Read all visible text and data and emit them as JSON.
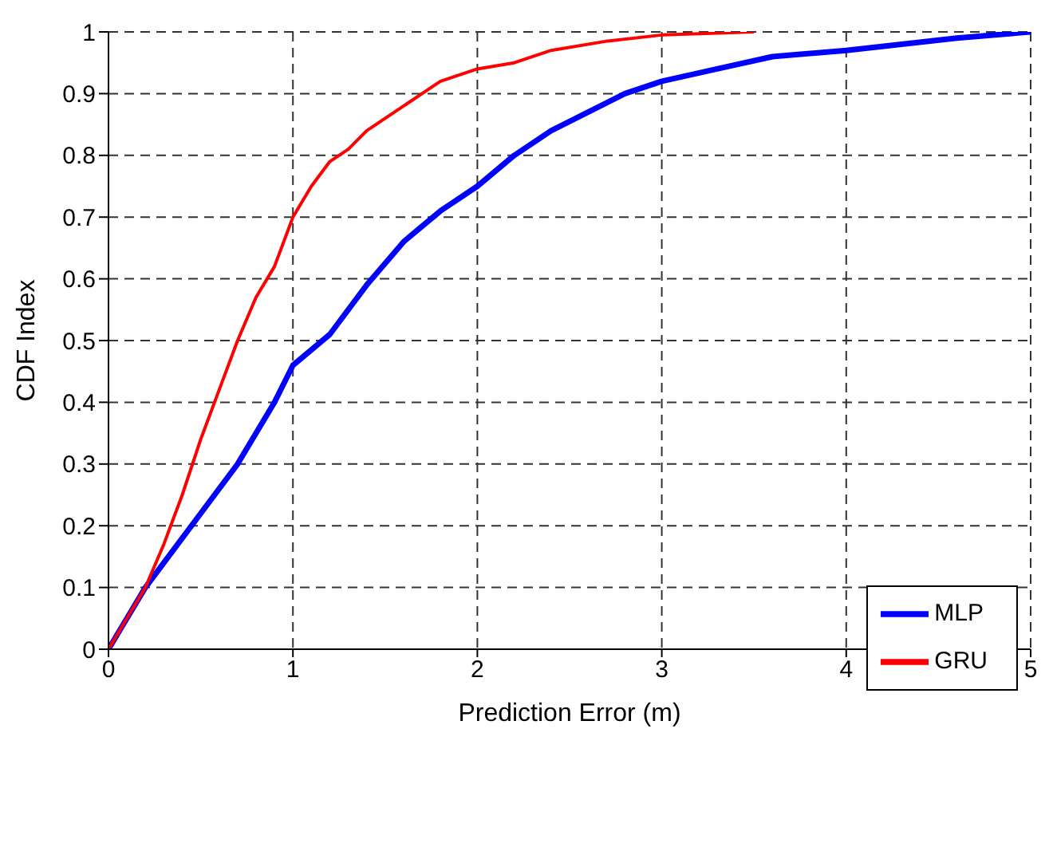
{
  "chart_data": {
    "type": "line",
    "xlabel": "Prediction Error (m)",
    "ylabel": "CDF Index",
    "xlim": [
      0,
      5
    ],
    "xticks": [
      0,
      1,
      2,
      3,
      4,
      5
    ],
    "ylim": [
      0,
      1
    ],
    "yticks": [
      0,
      0.1,
      0.2,
      0.3,
      0.4,
      0.5,
      0.6,
      0.7,
      0.8,
      0.9,
      1
    ],
    "grid": true,
    "line_style": "solid",
    "legend": "bottom right",
    "series": [
      {
        "name": "MLP",
        "color": "#0000ff",
        "x": [
          0,
          0.1,
          0.2,
          0.3,
          0.5,
          0.7,
          0.9,
          1.0,
          1.2,
          1.4,
          1.6,
          1.8,
          2.0,
          2.2,
          2.4,
          2.6,
          2.8,
          3.0,
          3.3,
          3.6,
          4.0,
          4.3,
          4.6,
          5.0
        ],
        "values": [
          0,
          0.05,
          0.1,
          0.14,
          0.22,
          0.3,
          0.4,
          0.46,
          0.51,
          0.59,
          0.66,
          0.71,
          0.75,
          0.8,
          0.84,
          0.87,
          0.9,
          0.92,
          0.94,
          0.96,
          0.97,
          0.98,
          0.99,
          1
        ]
      },
      {
        "name": "GRU",
        "color": "#ff0000",
        "x": [
          0,
          0.1,
          0.2,
          0.3,
          0.4,
          0.5,
          0.6,
          0.7,
          0.8,
          0.9,
          1.0,
          1.1,
          1.2,
          1.3,
          1.4,
          1.5,
          1.7,
          1.8,
          2.0,
          2.2,
          2.4,
          2.7,
          3.0,
          3.5
        ],
        "values": [
          0,
          0.05,
          0.1,
          0.17,
          0.25,
          0.34,
          0.42,
          0.5,
          0.57,
          0.62,
          0.7,
          0.75,
          0.79,
          0.81,
          0.84,
          0.86,
          0.9,
          0.92,
          0.94,
          0.95,
          0.97,
          0.985,
          0.995,
          1
        ]
      }
    ]
  }
}
